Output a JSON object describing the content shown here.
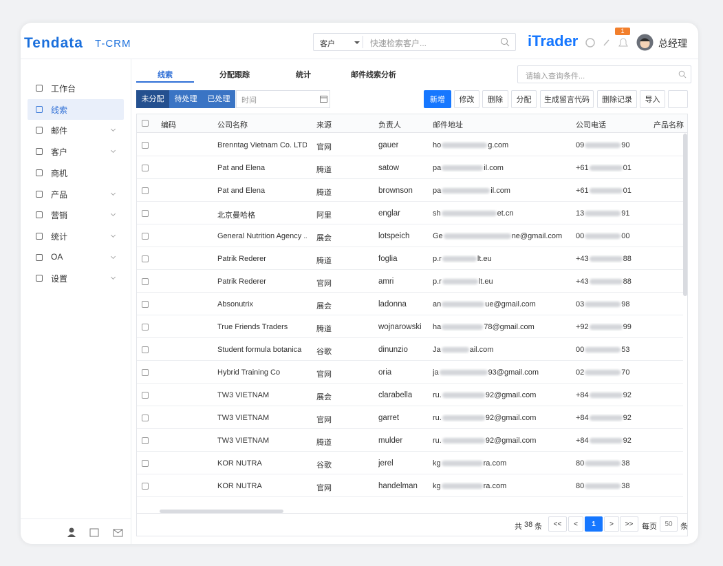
{
  "header": {
    "logo": "Tendata",
    "product": "T-CRM",
    "search_scope": "客户",
    "search_placeholder": "快速检索客户...",
    "brand": "iTrader",
    "notification_count": "1",
    "user": "总经理"
  },
  "sidebar": {
    "active": 1,
    "items": [
      {
        "label": "工作台",
        "expandable": false
      },
      {
        "label": "线索",
        "expandable": false
      },
      {
        "label": "邮件",
        "expandable": true
      },
      {
        "label": "客户",
        "expandable": true
      },
      {
        "label": "商机",
        "expandable": false
      },
      {
        "label": "产品",
        "expandable": true
      },
      {
        "label": "营销",
        "expandable": true
      },
      {
        "label": "统计",
        "expandable": true
      },
      {
        "label": "OA",
        "expandable": true
      },
      {
        "label": "设置",
        "expandable": true
      }
    ]
  },
  "tabs": {
    "active": 0,
    "items": [
      "线索",
      "分配跟踪",
      "统计",
      "邮件线索分析"
    ],
    "search_placeholder": "请输入查询条件..."
  },
  "toolbar": {
    "active_filter": 0,
    "status_filters": [
      "未分配",
      "待处理",
      "已处理"
    ],
    "time_placeholder": "时间",
    "actions": [
      "新增",
      "修改",
      "删除",
      "分配",
      "生成留言代码",
      "删除记录",
      "导入"
    ],
    "primary_action": 0
  },
  "table": {
    "columns": [
      "编码",
      "公司名称",
      "来源",
      "负责人",
      "邮件地址",
      "公司电话",
      "产品名称"
    ],
    "rows": [
      {
        "company": "Brenntag Vietnam Co. LTD",
        "source": "官网",
        "owner": "gauer",
        "email_start": "ho",
        "email_end": "g.com",
        "phone_start": "09",
        "phone_end": "90"
      },
      {
        "company": "Pat and Elena",
        "source": "腾道",
        "owner": "satow",
        "email_start": "pa",
        "email_end": "il.com",
        "phone_start": "+61",
        "phone_end": "01"
      },
      {
        "company": "Pat and Elena",
        "source": "腾道",
        "owner": "brownson",
        "email_start": "pa",
        "email_end": "il.com",
        "phone_start": "+61",
        "phone_end": "01"
      },
      {
        "company": "北京曼哈格",
        "source": "阿里",
        "owner": "englar",
        "email_start": "sh",
        "email_end": "et.cn",
        "phone_start": "13",
        "phone_end": "91"
      },
      {
        "company": "General Nutrition Agency ...",
        "source": "展会",
        "owner": "lotspeich",
        "email_start": "Ge",
        "email_end": "ne@gmail.com",
        "phone_start": "00",
        "phone_end": "00"
      },
      {
        "company": "Patrik Rederer",
        "source": "腾道",
        "owner": "foglia",
        "email_start": "p.r",
        "email_end": "lt.eu",
        "phone_start": "+43",
        "phone_end": "88"
      },
      {
        "company": "Patrik Rederer",
        "source": "官网",
        "owner": "amri",
        "email_start": "p.r",
        "email_end": "lt.eu",
        "phone_start": "+43",
        "phone_end": "88"
      },
      {
        "company": "Absonutrix",
        "source": "展会",
        "owner": "ladonna",
        "email_start": "an",
        "email_end": "ue@gmail.com",
        "phone_start": "03",
        "phone_end": "98"
      },
      {
        "company": "True Friends Traders",
        "source": "腾道",
        "owner": "wojnarowski",
        "email_start": "ha",
        "email_end": "78@gmail.com",
        "phone_start": "+92",
        "phone_end": "99"
      },
      {
        "company": "Student formula botanica",
        "source": "谷歌",
        "owner": "dinunzio",
        "email_start": "Ja",
        "email_end": "ail.com",
        "phone_start": "00",
        "phone_end": "53"
      },
      {
        "company": "Hybrid Training Co",
        "source": "官网",
        "owner": "oria",
        "email_start": "ja",
        "email_end": "93@gmail.com",
        "phone_start": "02",
        "phone_end": "70"
      },
      {
        "company": "TW3 VIETNAM",
        "source": "展会",
        "owner": "clarabella",
        "email_start": "ru.",
        "email_end": "92@gmail.com",
        "phone_start": "+84",
        "phone_end": "92"
      },
      {
        "company": "TW3 VIETNAM",
        "source": "官网",
        "owner": "garret",
        "email_start": "ru.",
        "email_end": "92@gmail.com",
        "phone_start": "+84",
        "phone_end": "92"
      },
      {
        "company": "TW3 VIETNAM",
        "source": "腾道",
        "owner": "mulder",
        "email_start": "ru.",
        "email_end": "92@gmail.com",
        "phone_start": "+84",
        "phone_end": "92"
      },
      {
        "company": "KOR NUTRA",
        "source": "谷歌",
        "owner": "jerel",
        "email_start": "kg",
        "email_end": "ra.com",
        "phone_start": "80",
        "phone_end": "38"
      },
      {
        "company": "KOR NUTRA",
        "source": "官网",
        "owner": "handelman",
        "email_start": "kg",
        "email_end": "ra.com",
        "phone_start": "80",
        "phone_end": "38"
      }
    ]
  },
  "pagination": {
    "total_prefix": "共",
    "total": 38,
    "total_suffix": "条",
    "first": "<<",
    "prev": "<",
    "page": 1,
    "next": ">",
    "last": ">>",
    "per_page_label": "每页",
    "per_page": 50,
    "per_page_suffix": "条"
  }
}
